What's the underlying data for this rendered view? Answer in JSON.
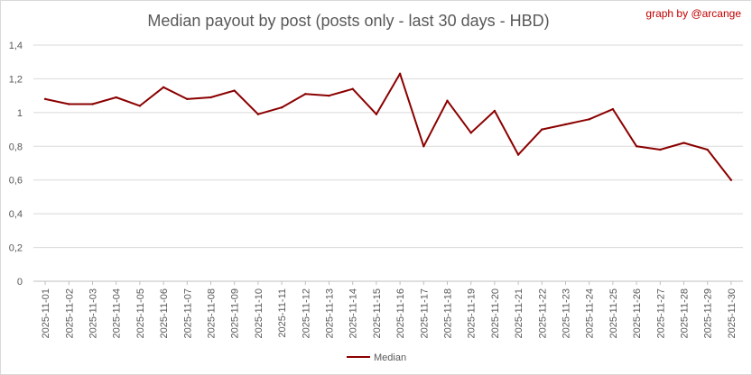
{
  "chart_data": {
    "type": "line",
    "title": "Median payout by post (posts only - last 30 days - HBD)",
    "credit": "graph by @arcange",
    "xlabel": "",
    "ylabel": "",
    "ylim": [
      0,
      1.4
    ],
    "yticks": [
      "0",
      "0,2",
      "0,4",
      "0,6",
      "0,8",
      "1",
      "1,2",
      "1,4"
    ],
    "grid": true,
    "legend_position": "bottom",
    "line_color": "#8b0000",
    "categories": [
      "2025-11-01",
      "2025-11-02",
      "2025-11-03",
      "2025-11-04",
      "2025-11-05",
      "2025-11-06",
      "2025-11-07",
      "2025-11-08",
      "2025-11-09",
      "2025-11-10",
      "2025-11-11",
      "2025-11-12",
      "2025-11-13",
      "2025-11-14",
      "2025-11-15",
      "2025-11-16",
      "2025-11-17",
      "2025-11-18",
      "2025-11-19",
      "2025-11-20",
      "2025-11-21",
      "2025-11-22",
      "2025-11-23",
      "2025-11-24",
      "2025-11-25",
      "2025-11-26",
      "2025-11-27",
      "2025-11-28",
      "2025-11-29",
      "2025-11-30"
    ],
    "series": [
      {
        "name": "Median",
        "values": [
          1.08,
          1.05,
          1.05,
          1.09,
          1.04,
          1.15,
          1.08,
          1.09,
          1.13,
          0.99,
          1.03,
          1.11,
          1.1,
          1.14,
          0.99,
          1.23,
          0.8,
          1.07,
          0.88,
          1.01,
          0.75,
          0.9,
          0.93,
          0.96,
          1.02,
          0.8,
          0.78,
          0.82,
          0.78,
          0.6
        ]
      }
    ]
  }
}
